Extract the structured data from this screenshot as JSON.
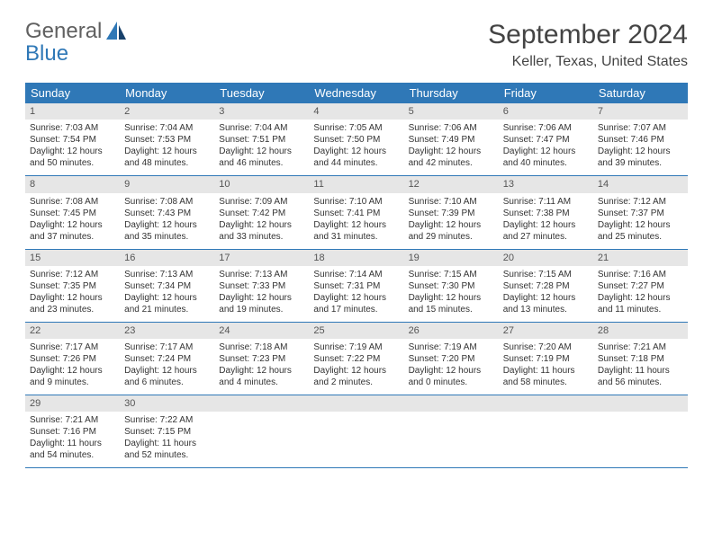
{
  "logo": {
    "word1": "General",
    "word2": "Blue"
  },
  "colors": {
    "header_bg": "#2f78b7",
    "header_text": "#ffffff",
    "daynum_bg": "#e6e6e6",
    "row_border": "#2f78b7",
    "logo_gray": "#606060",
    "logo_blue": "#2f78b7"
  },
  "title": "September 2024",
  "location": "Keller, Texas, United States",
  "weekdays": [
    "Sunday",
    "Monday",
    "Tuesday",
    "Wednesday",
    "Thursday",
    "Friday",
    "Saturday"
  ],
  "days": [
    {
      "n": "1",
      "sr": "Sunrise: 7:03 AM",
      "ss": "Sunset: 7:54 PM",
      "d1": "Daylight: 12 hours",
      "d2": "and 50 minutes."
    },
    {
      "n": "2",
      "sr": "Sunrise: 7:04 AM",
      "ss": "Sunset: 7:53 PM",
      "d1": "Daylight: 12 hours",
      "d2": "and 48 minutes."
    },
    {
      "n": "3",
      "sr": "Sunrise: 7:04 AM",
      "ss": "Sunset: 7:51 PM",
      "d1": "Daylight: 12 hours",
      "d2": "and 46 minutes."
    },
    {
      "n": "4",
      "sr": "Sunrise: 7:05 AM",
      "ss": "Sunset: 7:50 PM",
      "d1": "Daylight: 12 hours",
      "d2": "and 44 minutes."
    },
    {
      "n": "5",
      "sr": "Sunrise: 7:06 AM",
      "ss": "Sunset: 7:49 PM",
      "d1": "Daylight: 12 hours",
      "d2": "and 42 minutes."
    },
    {
      "n": "6",
      "sr": "Sunrise: 7:06 AM",
      "ss": "Sunset: 7:47 PM",
      "d1": "Daylight: 12 hours",
      "d2": "and 40 minutes."
    },
    {
      "n": "7",
      "sr": "Sunrise: 7:07 AM",
      "ss": "Sunset: 7:46 PM",
      "d1": "Daylight: 12 hours",
      "d2": "and 39 minutes."
    },
    {
      "n": "8",
      "sr": "Sunrise: 7:08 AM",
      "ss": "Sunset: 7:45 PM",
      "d1": "Daylight: 12 hours",
      "d2": "and 37 minutes."
    },
    {
      "n": "9",
      "sr": "Sunrise: 7:08 AM",
      "ss": "Sunset: 7:43 PM",
      "d1": "Daylight: 12 hours",
      "d2": "and 35 minutes."
    },
    {
      "n": "10",
      "sr": "Sunrise: 7:09 AM",
      "ss": "Sunset: 7:42 PM",
      "d1": "Daylight: 12 hours",
      "d2": "and 33 minutes."
    },
    {
      "n": "11",
      "sr": "Sunrise: 7:10 AM",
      "ss": "Sunset: 7:41 PM",
      "d1": "Daylight: 12 hours",
      "d2": "and 31 minutes."
    },
    {
      "n": "12",
      "sr": "Sunrise: 7:10 AM",
      "ss": "Sunset: 7:39 PM",
      "d1": "Daylight: 12 hours",
      "d2": "and 29 minutes."
    },
    {
      "n": "13",
      "sr": "Sunrise: 7:11 AM",
      "ss": "Sunset: 7:38 PM",
      "d1": "Daylight: 12 hours",
      "d2": "and 27 minutes."
    },
    {
      "n": "14",
      "sr": "Sunrise: 7:12 AM",
      "ss": "Sunset: 7:37 PM",
      "d1": "Daylight: 12 hours",
      "d2": "and 25 minutes."
    },
    {
      "n": "15",
      "sr": "Sunrise: 7:12 AM",
      "ss": "Sunset: 7:35 PM",
      "d1": "Daylight: 12 hours",
      "d2": "and 23 minutes."
    },
    {
      "n": "16",
      "sr": "Sunrise: 7:13 AM",
      "ss": "Sunset: 7:34 PM",
      "d1": "Daylight: 12 hours",
      "d2": "and 21 minutes."
    },
    {
      "n": "17",
      "sr": "Sunrise: 7:13 AM",
      "ss": "Sunset: 7:33 PM",
      "d1": "Daylight: 12 hours",
      "d2": "and 19 minutes."
    },
    {
      "n": "18",
      "sr": "Sunrise: 7:14 AM",
      "ss": "Sunset: 7:31 PM",
      "d1": "Daylight: 12 hours",
      "d2": "and 17 minutes."
    },
    {
      "n": "19",
      "sr": "Sunrise: 7:15 AM",
      "ss": "Sunset: 7:30 PM",
      "d1": "Daylight: 12 hours",
      "d2": "and 15 minutes."
    },
    {
      "n": "20",
      "sr": "Sunrise: 7:15 AM",
      "ss": "Sunset: 7:28 PM",
      "d1": "Daylight: 12 hours",
      "d2": "and 13 minutes."
    },
    {
      "n": "21",
      "sr": "Sunrise: 7:16 AM",
      "ss": "Sunset: 7:27 PM",
      "d1": "Daylight: 12 hours",
      "d2": "and 11 minutes."
    },
    {
      "n": "22",
      "sr": "Sunrise: 7:17 AM",
      "ss": "Sunset: 7:26 PM",
      "d1": "Daylight: 12 hours",
      "d2": "and 9 minutes."
    },
    {
      "n": "23",
      "sr": "Sunrise: 7:17 AM",
      "ss": "Sunset: 7:24 PM",
      "d1": "Daylight: 12 hours",
      "d2": "and 6 minutes."
    },
    {
      "n": "24",
      "sr": "Sunrise: 7:18 AM",
      "ss": "Sunset: 7:23 PM",
      "d1": "Daylight: 12 hours",
      "d2": "and 4 minutes."
    },
    {
      "n": "25",
      "sr": "Sunrise: 7:19 AM",
      "ss": "Sunset: 7:22 PM",
      "d1": "Daylight: 12 hours",
      "d2": "and 2 minutes."
    },
    {
      "n": "26",
      "sr": "Sunrise: 7:19 AM",
      "ss": "Sunset: 7:20 PM",
      "d1": "Daylight: 12 hours",
      "d2": "and 0 minutes."
    },
    {
      "n": "27",
      "sr": "Sunrise: 7:20 AM",
      "ss": "Sunset: 7:19 PM",
      "d1": "Daylight: 11 hours",
      "d2": "and 58 minutes."
    },
    {
      "n": "28",
      "sr": "Sunrise: 7:21 AM",
      "ss": "Sunset: 7:18 PM",
      "d1": "Daylight: 11 hours",
      "d2": "and 56 minutes."
    },
    {
      "n": "29",
      "sr": "Sunrise: 7:21 AM",
      "ss": "Sunset: 7:16 PM",
      "d1": "Daylight: 11 hours",
      "d2": "and 54 minutes."
    },
    {
      "n": "30",
      "sr": "Sunrise: 7:22 AM",
      "ss": "Sunset: 7:15 PM",
      "d1": "Daylight: 11 hours",
      "d2": "and 52 minutes."
    }
  ]
}
